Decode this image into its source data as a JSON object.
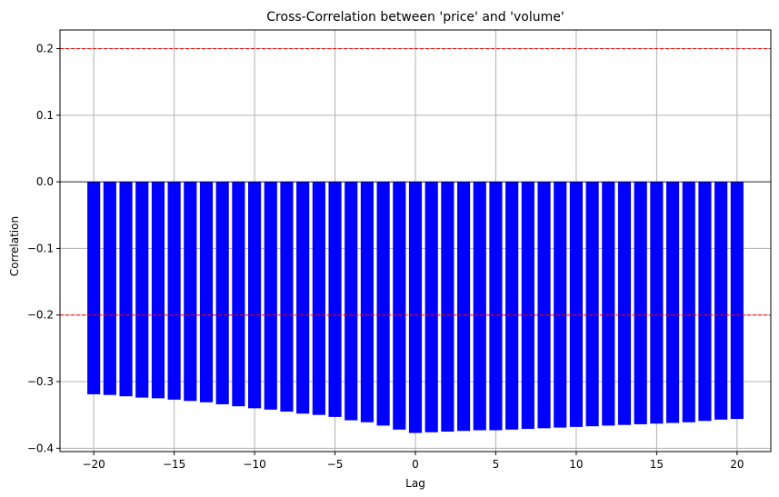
{
  "chart_data": {
    "type": "bar",
    "title": "Cross-Correlation between 'price' and 'volume'",
    "xlabel": "Lag",
    "ylabel": "Correlation",
    "xlim": [
      -22.1,
      22.1
    ],
    "ylim": [
      -0.405,
      0.228
    ],
    "xticks": [
      -20,
      -15,
      -10,
      -5,
      0,
      5,
      10,
      15,
      20
    ],
    "xtick_labels": [
      "−20",
      "−15",
      "−10",
      "−5",
      "0",
      "5",
      "10",
      "15",
      "20"
    ],
    "yticks": [
      -0.4,
      -0.3,
      -0.2,
      -0.1,
      0.0,
      0.1,
      0.2
    ],
    "ytick_labels": [
      "−0.4",
      "−0.3",
      "−0.2",
      "−0.1",
      "0.0",
      "0.1",
      "0.2"
    ],
    "grid": true,
    "bar_color": "#0000ff",
    "zero_line_color": "#000000",
    "threshold_color": "#ff0000",
    "thresholds": [
      0.2,
      -0.2
    ],
    "x": [
      -20,
      -19,
      -18,
      -17,
      -16,
      -15,
      -14,
      -13,
      -12,
      -11,
      -10,
      -9,
      -8,
      -7,
      -6,
      -5,
      -4,
      -3,
      -2,
      -1,
      0,
      1,
      2,
      3,
      4,
      5,
      6,
      7,
      8,
      9,
      10,
      11,
      12,
      13,
      14,
      15,
      16,
      17,
      18,
      19,
      20
    ],
    "values": [
      -0.319,
      -0.32,
      -0.322,
      -0.324,
      -0.325,
      -0.327,
      -0.329,
      -0.331,
      -0.334,
      -0.337,
      -0.34,
      -0.342,
      -0.345,
      -0.348,
      -0.35,
      -0.353,
      -0.358,
      -0.361,
      -0.366,
      -0.372,
      -0.377,
      -0.376,
      -0.375,
      -0.374,
      -0.373,
      -0.373,
      -0.372,
      -0.371,
      -0.37,
      -0.369,
      -0.368,
      -0.367,
      -0.366,
      -0.365,
      -0.364,
      -0.363,
      -0.362,
      -0.361,
      -0.359,
      -0.357,
      -0.356
    ]
  }
}
